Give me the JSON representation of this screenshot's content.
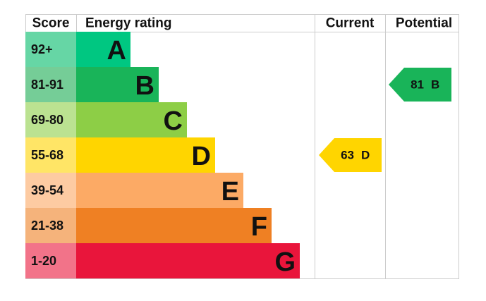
{
  "chart_data": {
    "type": "epc",
    "headers": {
      "score": "Score",
      "rating": "Energy rating",
      "current": "Current",
      "potential": "Potential"
    },
    "bands": [
      {
        "range": "92+",
        "letter": "A",
        "color": "#00c781",
        "score_color": "#66d6a5"
      },
      {
        "range": "81-91",
        "letter": "B",
        "color": "#19b459",
        "score_color": "#75cd97"
      },
      {
        "range": "69-80",
        "letter": "C",
        "color": "#8dce46",
        "score_color": "#bbe291"
      },
      {
        "range": "55-68",
        "letter": "D",
        "color": "#ffd500",
        "score_color": "#ffe566"
      },
      {
        "range": "39-54",
        "letter": "E",
        "color": "#fcaa65",
        "score_color": "#fdcba2"
      },
      {
        "range": "21-38",
        "letter": "F",
        "color": "#ef8023",
        "score_color": "#f5b37b"
      },
      {
        "range": "1-20",
        "letter": "G",
        "color": "#e9153b",
        "score_color": "#f27389"
      }
    ],
    "current": {
      "value": 63,
      "rating": "D"
    },
    "potential": {
      "value": 81,
      "rating": "B"
    }
  }
}
